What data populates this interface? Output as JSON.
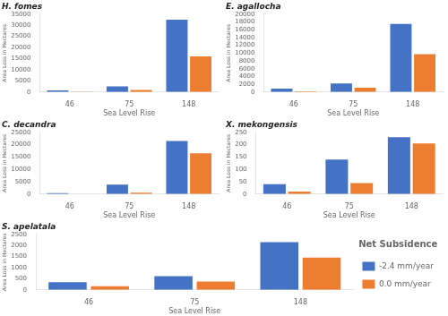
{
  "chart_data": [
    {
      "type": "bar",
      "title": "H. fomes",
      "xlabel": "Sea Level Rise",
      "ylabel": "Area Loss in Hectares",
      "categories": [
        "46",
        "75",
        "148"
      ],
      "series": [
        {
          "name": "-2.4 mm/year",
          "color": "#4472C4",
          "values": [
            700,
            2500,
            32500
          ]
        },
        {
          "name": "0.0 mm/year",
          "color": "#ED7D31",
          "values": [
            100,
            900,
            16000
          ]
        }
      ],
      "ylim": [
        0,
        35000
      ],
      "yticks": [
        0,
        5000,
        10000,
        15000,
        20000,
        25000,
        30000,
        35000
      ],
      "grid": false,
      "legend": false
    },
    {
      "type": "bar",
      "title": "E. agallocha",
      "xlabel": "Sea Level Rise",
      "ylabel": "Area Loss in Hectares",
      "categories": [
        "46",
        "75",
        "148"
      ],
      "series": [
        {
          "name": "-2.4 mm/year",
          "color": "#4472C4",
          "values": [
            900,
            2200,
            17500
          ]
        },
        {
          "name": "0.0 mm/year",
          "color": "#ED7D31",
          "values": [
            200,
            1100,
            9700
          ]
        }
      ],
      "ylim": [
        0,
        20000
      ],
      "yticks": [
        0,
        2000,
        4000,
        6000,
        8000,
        10000,
        12000,
        14000,
        16000,
        18000,
        20000
      ],
      "grid": false,
      "legend": false
    },
    {
      "type": "bar",
      "title": "C. decandra",
      "xlabel": "Sea Level Rise",
      "ylabel": "Area Loss in Hectares",
      "categories": [
        "46",
        "75",
        "148"
      ],
      "series": [
        {
          "name": "-2.4 mm/year",
          "color": "#4472C4",
          "values": [
            400,
            3800,
            21500
          ]
        },
        {
          "name": "0.0 mm/year",
          "color": "#ED7D31",
          "values": [
            0,
            600,
            16500
          ]
        }
      ],
      "ylim": [
        0,
        25000
      ],
      "yticks": [
        0,
        5000,
        10000,
        15000,
        20000,
        25000
      ],
      "grid": false,
      "legend": false
    },
    {
      "type": "bar",
      "title": "X. mekongensis",
      "xlabel": "Sea Level Rise",
      "ylabel": "Area Loss in Hectares",
      "categories": [
        "46",
        "75",
        "148"
      ],
      "series": [
        {
          "name": "-2.4 mm/year",
          "color": "#4472C4",
          "values": [
            40,
            140,
            230
          ]
        },
        {
          "name": "0.0 mm/year",
          "color": "#ED7D31",
          "values": [
            10,
            45,
            205
          ]
        }
      ],
      "ylim": [
        0,
        250
      ],
      "yticks": [
        0,
        50,
        100,
        150,
        200,
        250
      ],
      "grid": false,
      "legend": false
    },
    {
      "type": "bar",
      "title": "S. apelatala",
      "xlabel": "Sea Level Rise",
      "ylabel": "Area Loss in Hectares",
      "categories": [
        "46",
        "75",
        "148"
      ],
      "series": [
        {
          "name": "-2.4 mm/year",
          "color": "#4472C4",
          "values": [
            340,
            620,
            2150
          ]
        },
        {
          "name": "0.0 mm/year",
          "color": "#ED7D31",
          "values": [
            160,
            380,
            1450
          ]
        }
      ],
      "ylim": [
        0,
        2500
      ],
      "yticks": [
        0,
        500,
        1000,
        1500,
        2000,
        2500
      ],
      "grid": false,
      "legend": "right",
      "legend_title": "Net Subsidence"
    }
  ]
}
